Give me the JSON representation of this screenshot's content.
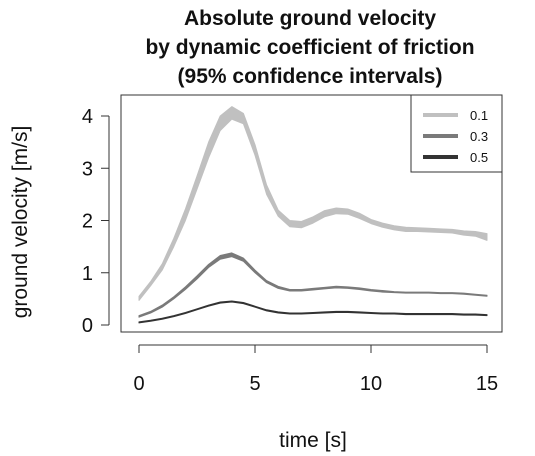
{
  "chart_data": {
    "type": "line",
    "title_lines": [
      "Absolute ground velocity",
      "by dynamic coefficient of friction",
      "(95% confidence intervals)"
    ],
    "xlabel": "time [s]",
    "ylabel": "ground velocity [m/s]",
    "xlim": [
      0,
      15
    ],
    "ylim": [
      0,
      4.2
    ],
    "xticks": [
      0,
      5,
      10,
      15
    ],
    "yticks": [
      0,
      1,
      2,
      3,
      4
    ],
    "grid": false,
    "legend_position": "top-right",
    "legend_entries": [
      "0.1",
      "0.3",
      "0.5"
    ],
    "series": [
      {
        "name": "0.1",
        "color": "#c0c0c0",
        "x": [
          0,
          0.5,
          1,
          1.5,
          2,
          2.5,
          3,
          3.5,
          4,
          4.5,
          5,
          5.5,
          6,
          6.5,
          7,
          7.5,
          8,
          8.5,
          9,
          9.5,
          10,
          10.5,
          11,
          11.5,
          12,
          12.5,
          13,
          13.5,
          14,
          14.5,
          15
        ],
        "lower": [
          0.47,
          0.75,
          1.05,
          1.5,
          2.0,
          2.6,
          3.2,
          3.72,
          3.94,
          3.85,
          3.25,
          2.5,
          2.08,
          1.88,
          1.86,
          1.95,
          2.07,
          2.13,
          2.12,
          2.04,
          1.94,
          1.87,
          1.82,
          1.79,
          1.79,
          1.78,
          1.77,
          1.76,
          1.72,
          1.7,
          1.62
        ],
        "upper": [
          0.55,
          0.83,
          1.17,
          1.66,
          2.22,
          2.85,
          3.5,
          4.0,
          4.18,
          4.05,
          3.45,
          2.68,
          2.2,
          2.0,
          1.98,
          2.07,
          2.19,
          2.24,
          2.22,
          2.14,
          2.02,
          1.95,
          1.9,
          1.87,
          1.86,
          1.85,
          1.84,
          1.83,
          1.8,
          1.79,
          1.75
        ]
      },
      {
        "name": "0.3",
        "color": "#7a7a7a",
        "x": [
          0,
          0.5,
          1,
          1.5,
          2,
          2.5,
          3,
          3.5,
          4,
          4.5,
          5,
          5.5,
          6,
          6.5,
          7,
          7.5,
          8,
          8.5,
          9,
          9.5,
          10,
          10.5,
          11,
          11.5,
          12,
          12.5,
          13,
          13.5,
          14,
          14.5,
          15
        ],
        "lower": [
          0.15,
          0.23,
          0.34,
          0.5,
          0.68,
          0.88,
          1.1,
          1.26,
          1.31,
          1.22,
          1.0,
          0.81,
          0.7,
          0.65,
          0.65,
          0.67,
          0.69,
          0.71,
          0.7,
          0.68,
          0.65,
          0.63,
          0.62,
          0.61,
          0.61,
          0.61,
          0.6,
          0.6,
          0.59,
          0.57,
          0.55
        ],
        "upper": [
          0.18,
          0.26,
          0.38,
          0.54,
          0.73,
          0.94,
          1.16,
          1.33,
          1.38,
          1.28,
          1.05,
          0.85,
          0.74,
          0.68,
          0.68,
          0.7,
          0.72,
          0.74,
          0.73,
          0.71,
          0.68,
          0.66,
          0.64,
          0.63,
          0.63,
          0.63,
          0.62,
          0.62,
          0.61,
          0.59,
          0.57
        ]
      },
      {
        "name": "0.5",
        "color": "#333333",
        "x": [
          0,
          0.5,
          1,
          1.5,
          2,
          2.5,
          3,
          3.5,
          4,
          4.5,
          5,
          5.5,
          6,
          6.5,
          7,
          7.5,
          8,
          8.5,
          9,
          9.5,
          10,
          10.5,
          11,
          11.5,
          12,
          12.5,
          13,
          13.5,
          14,
          14.5,
          15
        ],
        "lower": [
          0.04,
          0.07,
          0.11,
          0.16,
          0.22,
          0.29,
          0.36,
          0.42,
          0.44,
          0.41,
          0.34,
          0.27,
          0.23,
          0.21,
          0.21,
          0.22,
          0.23,
          0.24,
          0.24,
          0.23,
          0.22,
          0.21,
          0.21,
          0.2,
          0.2,
          0.2,
          0.2,
          0.2,
          0.19,
          0.19,
          0.18
        ],
        "upper": [
          0.06,
          0.09,
          0.13,
          0.18,
          0.24,
          0.31,
          0.38,
          0.44,
          0.46,
          0.43,
          0.36,
          0.29,
          0.25,
          0.23,
          0.23,
          0.24,
          0.25,
          0.26,
          0.26,
          0.25,
          0.24,
          0.23,
          0.23,
          0.22,
          0.22,
          0.22,
          0.22,
          0.22,
          0.21,
          0.21,
          0.2
        ]
      }
    ]
  }
}
